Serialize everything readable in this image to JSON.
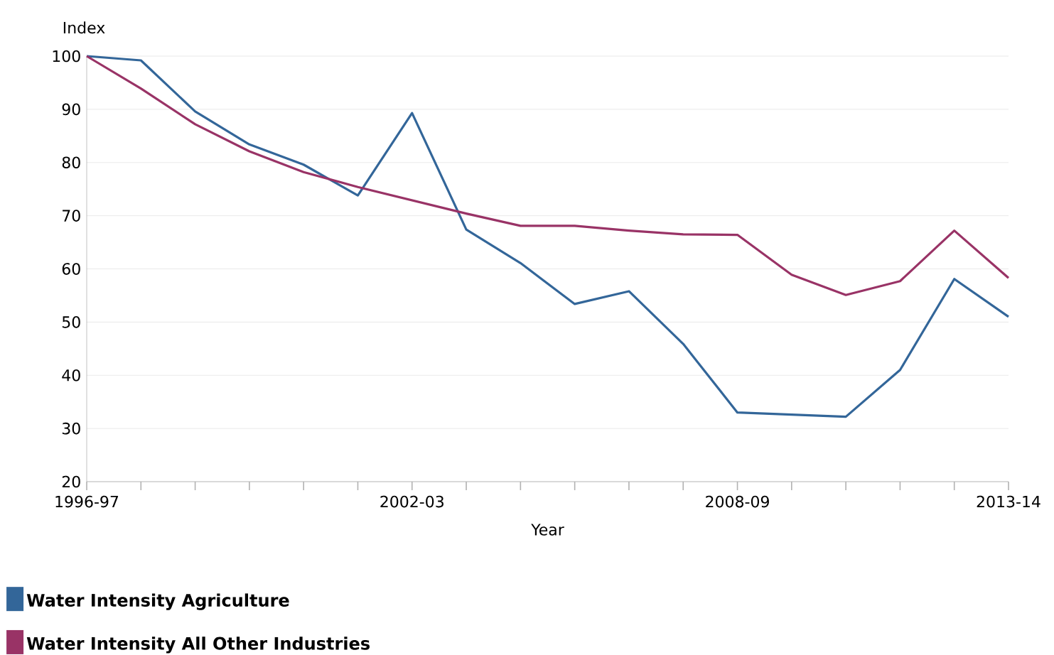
{
  "chart_data": {
    "type": "line",
    "xlabel": "Year",
    "ylabel": "Index",
    "categories": [
      "1996-97",
      null,
      null,
      null,
      null,
      null,
      "2002-03",
      null,
      null,
      null,
      null,
      null,
      "2008-09",
      null,
      null,
      null,
      null,
      "2013-14"
    ],
    "series": [
      {
        "name": "Water Intensity Agriculture",
        "color": "#336699",
        "values": [
          100,
          99.2,
          89.6,
          83.4,
          79.6,
          73.8,
          89.3,
          67.4,
          61.1,
          53.4,
          55.8,
          45.9,
          33.0,
          32.6,
          32.2,
          41.0,
          58.1,
          51.0
        ]
      },
      {
        "name": "Water Intensity All Other Industries",
        "color": "#993366",
        "values": [
          100,
          93.9,
          87.2,
          82.1,
          78.2,
          75.4,
          72.9,
          70.4,
          68.1,
          68.1,
          67.2,
          66.5,
          66.4,
          58.9,
          55.1,
          57.7,
          67.2,
          58.3
        ]
      }
    ],
    "ylim": [
      20,
      100
    ],
    "yticks": [
      20,
      30,
      40,
      50,
      60,
      70,
      80,
      90,
      100
    ],
    "grid": "y",
    "legend": "bottom left",
    "marker": "none",
    "line_style": "solid"
  }
}
